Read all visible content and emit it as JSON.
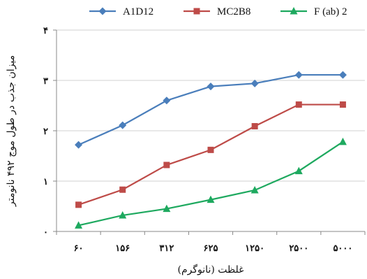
{
  "chart_data": {
    "type": "line",
    "xlabel": "غلظت (نانوگرم)",
    "ylabel": "میزان جذب در طول موج ۴۹۲ نانومتر",
    "categories": [
      "۶۰",
      "۱۵۶",
      "۳۱۲",
      "۶۲۵",
      "۱۲۵۰",
      "۲۵۰۰",
      "۵۰۰۰"
    ],
    "y_ticks": [
      "۰",
      "۱",
      "۲",
      "۳",
      "۴"
    ],
    "ylim": [
      0,
      4
    ],
    "grid": "horizontal",
    "legend_position": "top",
    "series": [
      {
        "name": "A1D12",
        "color": "#4a7ebb",
        "marker": "diamond",
        "values": [
          1.72,
          2.11,
          2.6,
          2.88,
          2.94,
          3.11,
          3.11
        ]
      },
      {
        "name": "MC2B8",
        "color": "#be4b48",
        "marker": "square",
        "values": [
          0.53,
          0.83,
          1.32,
          1.62,
          2.09,
          2.52,
          2.52
        ]
      },
      {
        "name": "F (ab) 2",
        "color": "#1ea95f",
        "marker": "triangle",
        "values": [
          0.12,
          0.32,
          0.45,
          0.63,
          0.82,
          1.2,
          1.78
        ]
      }
    ]
  }
}
